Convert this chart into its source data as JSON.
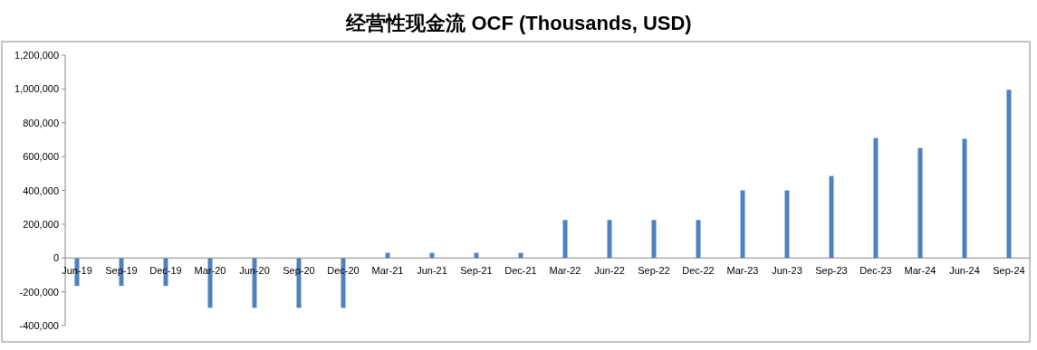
{
  "chart_data": {
    "type": "bar",
    "title": "经营性现金流 OCF (Thousands, USD)",
    "categories": [
      "Jun-19",
      "Sep-19",
      "Dec-19",
      "Mar-20",
      "Jun-20",
      "Sep-20",
      "Dec-20",
      "Mar-21",
      "Jun-21",
      "Sep-21",
      "Dec-21",
      "Mar-22",
      "Jun-22",
      "Sep-22",
      "Dec-22",
      "Mar-23",
      "Jun-23",
      "Sep-23",
      "Dec-23",
      "Mar-24",
      "Jun-24",
      "Sep-24"
    ],
    "values": [
      -165000,
      -165000,
      -165000,
      -295000,
      -295000,
      -295000,
      -295000,
      30000,
      30000,
      30000,
      30000,
      225000,
      225000,
      225000,
      225000,
      400000,
      400000,
      485000,
      710000,
      650000,
      705000,
      995000
    ],
    "color": "#4f81bd",
    "ylim": [
      -400000,
      1200000
    ],
    "yticks": [
      {
        "value": -400000,
        "label": "-400,000"
      },
      {
        "value": -200000,
        "label": "-200,000"
      },
      0,
      {
        "value": 200000,
        "label": "200,000"
      },
      {
        "value": 400000,
        "label": "400,000"
      },
      {
        "value": 600000,
        "label": "600,000"
      },
      {
        "value": 800000,
        "label": "800,000"
      },
      {
        "value": 1000000,
        "label": "1,000,000"
      },
      {
        "value": 1200000,
        "label": "1,200,000"
      }
    ],
    "grid": false
  }
}
